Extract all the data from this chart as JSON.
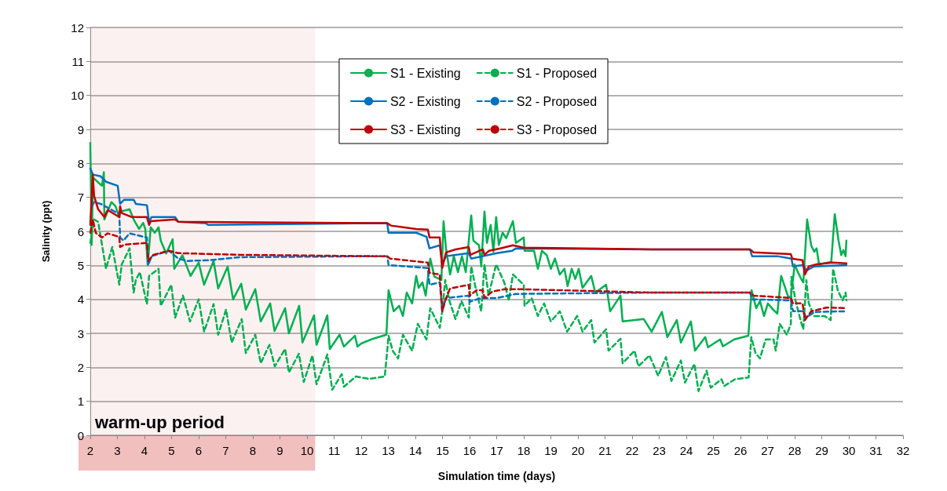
{
  "chart_data": {
    "type": "line",
    "xlabel": "Simulation time (days)",
    "ylabel": "Salinity (ppt)",
    "xlim": [
      2,
      32
    ],
    "xticks": [
      2,
      3,
      4,
      5,
      6,
      7,
      8,
      9,
      10,
      11,
      12,
      13,
      14,
      15,
      16,
      17,
      18,
      19,
      20,
      21,
      22,
      23,
      24,
      25,
      26,
      27,
      28,
      29,
      30,
      31,
      32
    ],
    "ylim": [
      0,
      12
    ],
    "yticks": [
      0,
      1,
      2,
      3,
      4,
      5,
      6,
      7,
      8,
      9,
      10,
      11,
      12
    ],
    "grid": "y",
    "legend": "top",
    "marker": "none",
    "bands": [
      {
        "axis": "x",
        "from": 2,
        "to": 10.3,
        "label": "warm-up period",
        "color": "#e88a8a"
      }
    ],
    "series": [
      {
        "name": "S1 - Existing",
        "color": "#00b050",
        "line_style": "solid",
        "x": [
          2,
          2.05,
          2.1,
          2.43,
          2.5,
          2.52,
          2.78,
          2.93,
          3.07,
          3.1,
          3.45,
          3.6,
          3.8,
          3.95,
          4.03,
          4.12,
          4.23,
          4.38,
          4.52,
          4.6,
          4.8,
          5.04,
          5.1,
          5.4,
          5.7,
          6.0,
          6.2,
          6.55,
          6.72,
          7.07,
          7.27,
          7.57,
          7.74,
          8.09,
          8.29,
          8.64,
          8.8,
          9.19,
          9.33,
          9.71,
          9.83,
          10.26,
          10.35,
          10.75,
          10.84,
          11.2,
          11.36,
          11.77,
          11.86,
          12.0,
          12.43,
          12.93,
          13.01,
          13.2,
          13.4,
          13.54,
          13.68,
          13.88,
          14.03,
          14.12,
          14.26,
          14.38,
          14.55,
          14.7,
          14.96,
          15.04,
          15.13,
          15.28,
          15.42,
          15.57,
          15.72,
          15.86,
          16.06,
          16.14,
          16.35,
          16.43,
          16.55,
          16.64,
          16.78,
          16.88,
          16.98,
          17.08,
          17.22,
          17.35,
          17.6,
          17.71,
          18.0,
          18.03,
          18.38,
          18.52,
          18.67,
          18.85,
          19.0,
          19.15,
          19.33,
          19.5,
          19.62,
          19.77,
          19.9,
          20.03,
          20.17,
          20.49,
          20.64,
          21.04,
          21.19,
          21.57,
          21.65,
          22.43,
          22.72,
          23.1,
          23.3,
          23.65,
          23.8,
          24.17,
          24.32,
          24.7,
          24.8,
          25.25,
          25.35,
          25.77,
          26.29,
          26.41,
          26.58,
          26.72,
          26.87,
          27.01,
          27.2,
          27.36,
          27.5,
          27.65,
          27.75,
          27.86,
          28.0,
          28.12,
          28.23,
          28.32,
          28.46,
          28.61,
          28.72,
          28.81,
          28.9,
          29.19,
          29.35,
          29.48,
          29.62,
          29.72,
          29.8,
          29.88,
          29.91
        ],
        "values": [
          8.6,
          5.6,
          7.58,
          7.34,
          7.74,
          6.35,
          6.86,
          6.74,
          6.42,
          6.58,
          6.65,
          6.35,
          6.07,
          6.25,
          6.07,
          5.01,
          6.12,
          5.96,
          6.12,
          5.73,
          5.35,
          5.77,
          4.9,
          5.3,
          4.69,
          5.08,
          4.43,
          5.13,
          4.32,
          4.96,
          4.0,
          4.46,
          3.7,
          4.3,
          3.35,
          3.88,
          3.07,
          3.74,
          3.0,
          3.81,
          2.73,
          3.53,
          2.66,
          3.53,
          2.54,
          2.96,
          2.61,
          2.93,
          2.61,
          2.7,
          2.84,
          2.96,
          4.27,
          3.65,
          3.81,
          3.51,
          4.2,
          3.88,
          4.69,
          4.34,
          4.5,
          4.11,
          5.2,
          4.67,
          4.57,
          6.3,
          5.5,
          4.73,
          5.27,
          4.8,
          5.27,
          4.8,
          6.47,
          5.73,
          5.59,
          4.97,
          6.58,
          5.66,
          6.19,
          5.4,
          6.42,
          5.6,
          5.96,
          5.8,
          6.3,
          5.66,
          5.82,
          5.43,
          5.43,
          4.9,
          5.43,
          5.3,
          4.9,
          5.2,
          4.73,
          4.9,
          4.39,
          4.9,
          4.6,
          4.9,
          4.34,
          4.69,
          4.2,
          4.43,
          3.65,
          4.11,
          3.35,
          3.42,
          3.05,
          3.63,
          2.89,
          3.39,
          2.73,
          3.35,
          2.49,
          2.89,
          2.59,
          2.82,
          2.62,
          2.82,
          2.93,
          4.27,
          3.74,
          3.95,
          3.51,
          3.88,
          3.7,
          3.58,
          4.69,
          4.34,
          4.1,
          4.04,
          5.03,
          4.8,
          4.62,
          4.5,
          6.35,
          5.59,
          5.4,
          5.5,
          5.03,
          5.08,
          5.1,
          6.51,
          5.73,
          5.3,
          5.45,
          5.27,
          5.73
        ]
      },
      {
        "name": "S1 - Proposed",
        "color": "#00b050",
        "line_style": "dashed",
        "x": [
          2,
          2.14,
          2.29,
          2.58,
          2.81,
          3.07,
          3.16,
          3.45,
          3.6,
          3.68,
          3.83,
          4.09,
          4.17,
          4.52,
          4.6,
          4.99,
          5.13,
          5.42,
          5.68,
          6.0,
          6.2,
          6.55,
          6.72,
          7.01,
          7.22,
          7.59,
          7.74,
          8.09,
          8.29,
          8.61,
          8.81,
          9.19,
          9.33,
          9.7,
          9.88,
          10.2,
          10.35,
          10.75,
          10.93,
          11.28,
          11.36,
          11.8,
          12.29,
          12.87,
          12.96,
          13.01,
          13.16,
          13.36,
          13.54,
          13.88,
          14.09,
          14.41,
          14.55,
          14.9,
          14.99,
          15.1,
          15.25,
          15.48,
          15.7,
          15.97,
          16.06,
          16.26,
          16.43,
          16.55,
          16.7,
          16.84,
          16.98,
          17.28,
          17.45,
          17.6,
          18.0,
          18.03,
          18.29,
          18.52,
          18.75,
          19.0,
          19.33,
          19.6,
          19.97,
          20.17,
          20.49,
          20.61,
          21.04,
          21.13,
          21.57,
          21.65,
          22.09,
          22.23,
          22.64,
          22.96,
          23.25,
          23.45,
          23.8,
          23.95,
          24.3,
          24.45,
          24.75,
          24.9,
          25.3,
          25.4,
          25.8,
          26.3,
          26.4,
          26.55,
          26.72,
          26.93,
          27.22,
          27.3,
          27.45,
          27.71,
          27.86,
          27.88,
          28.03,
          28.23,
          28.32,
          28.43,
          28.52,
          28.72,
          29.1,
          29.33,
          29.42,
          29.59,
          29.77,
          29.88,
          29.91
        ],
        "values": [
          5.66,
          6.35,
          6.28,
          4.9,
          5.54,
          4.43,
          5.03,
          5.5,
          4.2,
          4.57,
          4.8,
          3.86,
          4.69,
          4.9,
          3.81,
          4.43,
          3.46,
          4.11,
          3.35,
          4.0,
          3.05,
          3.86,
          2.96,
          3.7,
          2.73,
          3.42,
          2.42,
          2.96,
          2.12,
          2.66,
          2.03,
          2.54,
          1.85,
          2.4,
          1.57,
          2.35,
          1.5,
          2.38,
          1.34,
          1.8,
          1.43,
          1.73,
          1.66,
          1.73,
          2.49,
          2.93,
          2.49,
          2.26,
          2.96,
          2.49,
          3.28,
          2.82,
          3.74,
          3.16,
          3.65,
          4.57,
          3.97,
          3.42,
          3.95,
          3.46,
          4.97,
          4.2,
          3.65,
          5.03,
          4.11,
          4.57,
          5.03,
          4.5,
          3.97,
          4.73,
          4.43,
          3.81,
          4.04,
          3.51,
          3.88,
          3.35,
          3.65,
          3.05,
          3.51,
          3.05,
          3.39,
          2.73,
          3.12,
          2.49,
          2.84,
          2.12,
          2.49,
          2.03,
          2.35,
          1.75,
          2.3,
          1.6,
          2.2,
          1.55,
          2.1,
          1.3,
          1.9,
          1.4,
          1.65,
          1.45,
          1.65,
          1.7,
          2.89,
          2.43,
          2.26,
          2.82,
          2.82,
          2.49,
          3.28,
          2.96,
          3.28,
          4.66,
          3.97,
          3.35,
          3.12,
          4.57,
          3.88,
          3.51,
          3.51,
          3.39,
          4.9,
          4.27,
          3.97,
          4.2,
          3.97
        ]
      },
      {
        "name": "S2 - Existing",
        "color": "#0070c0",
        "line_style": "solid",
        "x": [
          2,
          2.1,
          2.38,
          2.58,
          3.01,
          3.1,
          3.25,
          3.6,
          3.68,
          4.09,
          4.17,
          4.26,
          5.13,
          5.25,
          6.26,
          6.35,
          12.43,
          12.96,
          13.01,
          14.03,
          14.41,
          14.52,
          14.9,
          14.99,
          15.13,
          15.97,
          16.06,
          16.49,
          17.01,
          17.57,
          17.71,
          22.72,
          26.35,
          26.43,
          27.36,
          27.88,
          27.94,
          28.32,
          28.43,
          28.72,
          29.91
        ],
        "values": [
          7.85,
          7.67,
          7.62,
          7.46,
          7.34,
          6.81,
          6.93,
          6.93,
          6.81,
          6.77,
          6.28,
          6.42,
          6.42,
          6.28,
          6.24,
          6.19,
          6.24,
          6.24,
          5.96,
          5.96,
          5.84,
          5.5,
          5.59,
          5.03,
          5.27,
          5.36,
          5.2,
          5.27,
          5.36,
          5.43,
          5.5,
          5.47,
          5.47,
          5.27,
          5.27,
          5.2,
          4.97,
          5.01,
          4.85,
          4.97,
          5.01
        ]
      },
      {
        "name": "S2 - Proposed",
        "color": "#0070c0",
        "line_style": "dashed",
        "x": [
          2.06,
          2.14,
          2.38,
          3.07,
          3.1,
          3.22,
          3.45,
          4.09,
          4.14,
          4.26,
          4.9,
          5.25,
          5.57,
          6.35,
          7.51,
          12.43,
          12.96,
          13.01,
          14.46,
          14.52,
          14.9,
          14.99,
          15.13,
          15.97,
          16.0,
          16.43,
          17.01,
          17.71,
          22.72,
          26.35,
          26.43,
          27.86,
          27.94,
          28.32,
          28.43,
          28.72,
          29.91
        ],
        "values": [
          6.74,
          6.86,
          6.81,
          6.51,
          5.82,
          5.73,
          5.94,
          5.82,
          5.01,
          5.27,
          5.43,
          5.2,
          5.13,
          5.15,
          5.24,
          5.27,
          5.27,
          5.01,
          4.92,
          4.43,
          4.5,
          3.65,
          4.04,
          4.11,
          3.93,
          4.04,
          4.04,
          4.16,
          4.2,
          4.2,
          4.0,
          3.97,
          3.65,
          3.65,
          3.46,
          3.63,
          3.65
        ]
      },
      {
        "name": "S3 - Existing",
        "color": "#c00000",
        "line_style": "solid",
        "x": [
          2,
          2.09,
          2.14,
          2.29,
          2.52,
          2.64,
          3.07,
          3.1,
          3.16,
          3.54,
          4.09,
          4.17,
          4.23,
          5.13,
          5.25,
          12.43,
          12.96,
          13.1,
          14.03,
          14.46,
          14.52,
          14.9,
          14.99,
          15.13,
          15.48,
          15.97,
          16.03,
          16.49,
          16.55,
          16.72,
          17.13,
          17.6,
          18.0,
          22.72,
          26.35,
          26.49,
          27.86,
          27.91,
          28.29,
          28.38,
          28.52,
          28.81,
          29.39,
          29.91
        ],
        "values": [
          6.19,
          7.67,
          7.04,
          6.65,
          6.42,
          6.63,
          6.42,
          6.74,
          6.54,
          6.42,
          6.42,
          6.19,
          6.3,
          6.35,
          6.28,
          6.24,
          6.24,
          6.17,
          6.07,
          6.05,
          5.82,
          5.82,
          4.92,
          5.38,
          5.47,
          5.54,
          5.31,
          5.47,
          5.31,
          5.43,
          5.5,
          5.59,
          5.52,
          5.47,
          5.47,
          5.38,
          5.33,
          5.2,
          5.15,
          4.73,
          4.97,
          5.03,
          5.08,
          5.06
        ]
      },
      {
        "name": "S3 - Proposed",
        "color": "#c00000",
        "line_style": "dashed",
        "x": [
          2,
          2.09,
          2.2,
          2.43,
          2.64,
          3.07,
          3.1,
          3.25,
          4.09,
          4.14,
          4.32,
          4.9,
          5.25,
          7.51,
          12.43,
          12.96,
          13.07,
          14.46,
          14.52,
          14.9,
          14.99,
          15.1,
          15.28,
          15.97,
          16.0,
          16.26,
          16.49,
          16.55,
          16.84,
          17.3,
          17.8,
          22.72,
          26.35,
          26.49,
          27.86,
          27.94,
          28.29,
          28.38,
          28.61,
          29.19,
          29.91
        ],
        "values": [
          5.96,
          6.35,
          5.96,
          5.82,
          5.94,
          5.84,
          5.54,
          5.61,
          5.66,
          5.13,
          5.31,
          5.43,
          5.36,
          5.31,
          5.27,
          5.27,
          5.2,
          5.08,
          4.78,
          4.73,
          3.65,
          3.97,
          4.32,
          4.43,
          4.11,
          4.27,
          4.27,
          4.04,
          4.23,
          4.3,
          4.3,
          4.2,
          4.2,
          4.11,
          4.04,
          3.88,
          3.88,
          3.39,
          3.65,
          3.76,
          3.74
        ]
      }
    ]
  }
}
